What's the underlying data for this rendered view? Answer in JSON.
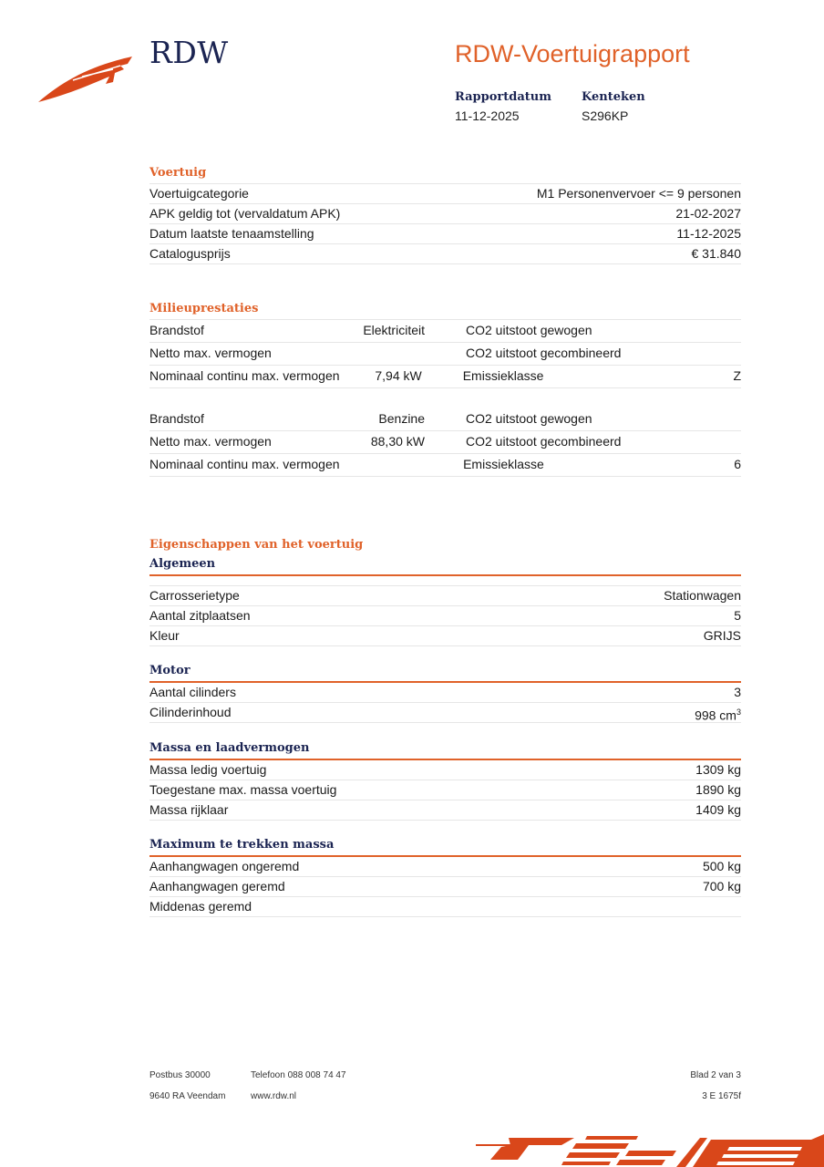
{
  "header": {
    "logo_text": "RDW",
    "title": "RDW-Voertuigrapport",
    "report_date_label": "Rapportdatum",
    "report_date": "11-12-2025",
    "plate_label": "Kenteken",
    "plate": "S296KP"
  },
  "voertuig": {
    "title": "Voertuig",
    "rows": [
      {
        "label": "Voertuigcategorie",
        "value": "M1 Personenvervoer <= 9 personen"
      },
      {
        "label": "APK geldig tot (vervaldatum APK)",
        "value": "21-02-2027"
      },
      {
        "label": "Datum laatste tenaamstelling",
        "value": "11-12-2025"
      },
      {
        "label": "Catalogusprijs",
        "value": "€ 31.840"
      }
    ]
  },
  "milieu": {
    "title": "Milieuprestaties",
    "blocks": [
      [
        {
          "l1": "Brandstof",
          "v1": "Elektriciteit",
          "l2": "CO2 uitstoot gewogen",
          "v2": ""
        },
        {
          "l1": "Netto max. vermogen",
          "v1": "",
          "l2": "CO2 uitstoot gecombineerd",
          "v2": ""
        },
        {
          "l1": "Nominaal continu max. vermogen",
          "v1": "7,94 kW",
          "l2": "Emissieklasse",
          "v2": "Z"
        }
      ],
      [
        {
          "l1": "Brandstof",
          "v1": "Benzine",
          "l2": "CO2 uitstoot gewogen",
          "v2": ""
        },
        {
          "l1": "Netto max. vermogen",
          "v1": "88,30 kW",
          "l2": "CO2 uitstoot gecombineerd",
          "v2": ""
        },
        {
          "l1": "Nominaal continu max. vermogen",
          "v1": "",
          "l2": "Emissieklasse",
          "v2": "6"
        }
      ]
    ]
  },
  "eigenschappen": {
    "title": "Eigenschappen van het voertuig",
    "groups": [
      {
        "title": "Algemeen",
        "rows": [
          {
            "label": "Carrosserietype",
            "value": "Stationwagen"
          },
          {
            "label": "Aantal zitplaatsen",
            "value": "5"
          },
          {
            "label": "Kleur",
            "value": "GRIJS"
          }
        ]
      },
      {
        "title": "Motor",
        "rows": [
          {
            "label": "Aantal cilinders",
            "value": "3"
          },
          {
            "label": "Cilinderinhoud",
            "value": "998 cm",
            "sup": "3"
          }
        ]
      },
      {
        "title": "Massa en laadvermogen",
        "rows": [
          {
            "label": "Massa ledig voertuig",
            "value": "1309 kg"
          },
          {
            "label": "Toegestane max. massa voertuig",
            "value": "1890 kg"
          },
          {
            "label": "Massa rijklaar",
            "value": "1409 kg"
          }
        ]
      },
      {
        "title": "Maximum te trekken massa",
        "rows": [
          {
            "label": "Aanhangwagen ongeremd",
            "value": "500 kg"
          },
          {
            "label": "Aanhangwagen geremd",
            "value": "700 kg"
          },
          {
            "label": "Middenas geremd",
            "value": ""
          }
        ]
      }
    ]
  },
  "footer": {
    "postbus": "Postbus 30000",
    "city": "9640 RA Veendam",
    "phone": "Telefoon 088 008 74 47",
    "web": "www.rdw.nl",
    "page": "Blad 2 van 3",
    "code": "3 E 1675f"
  },
  "colors": {
    "accent": "#e0622a",
    "navy": "#1b2452"
  }
}
